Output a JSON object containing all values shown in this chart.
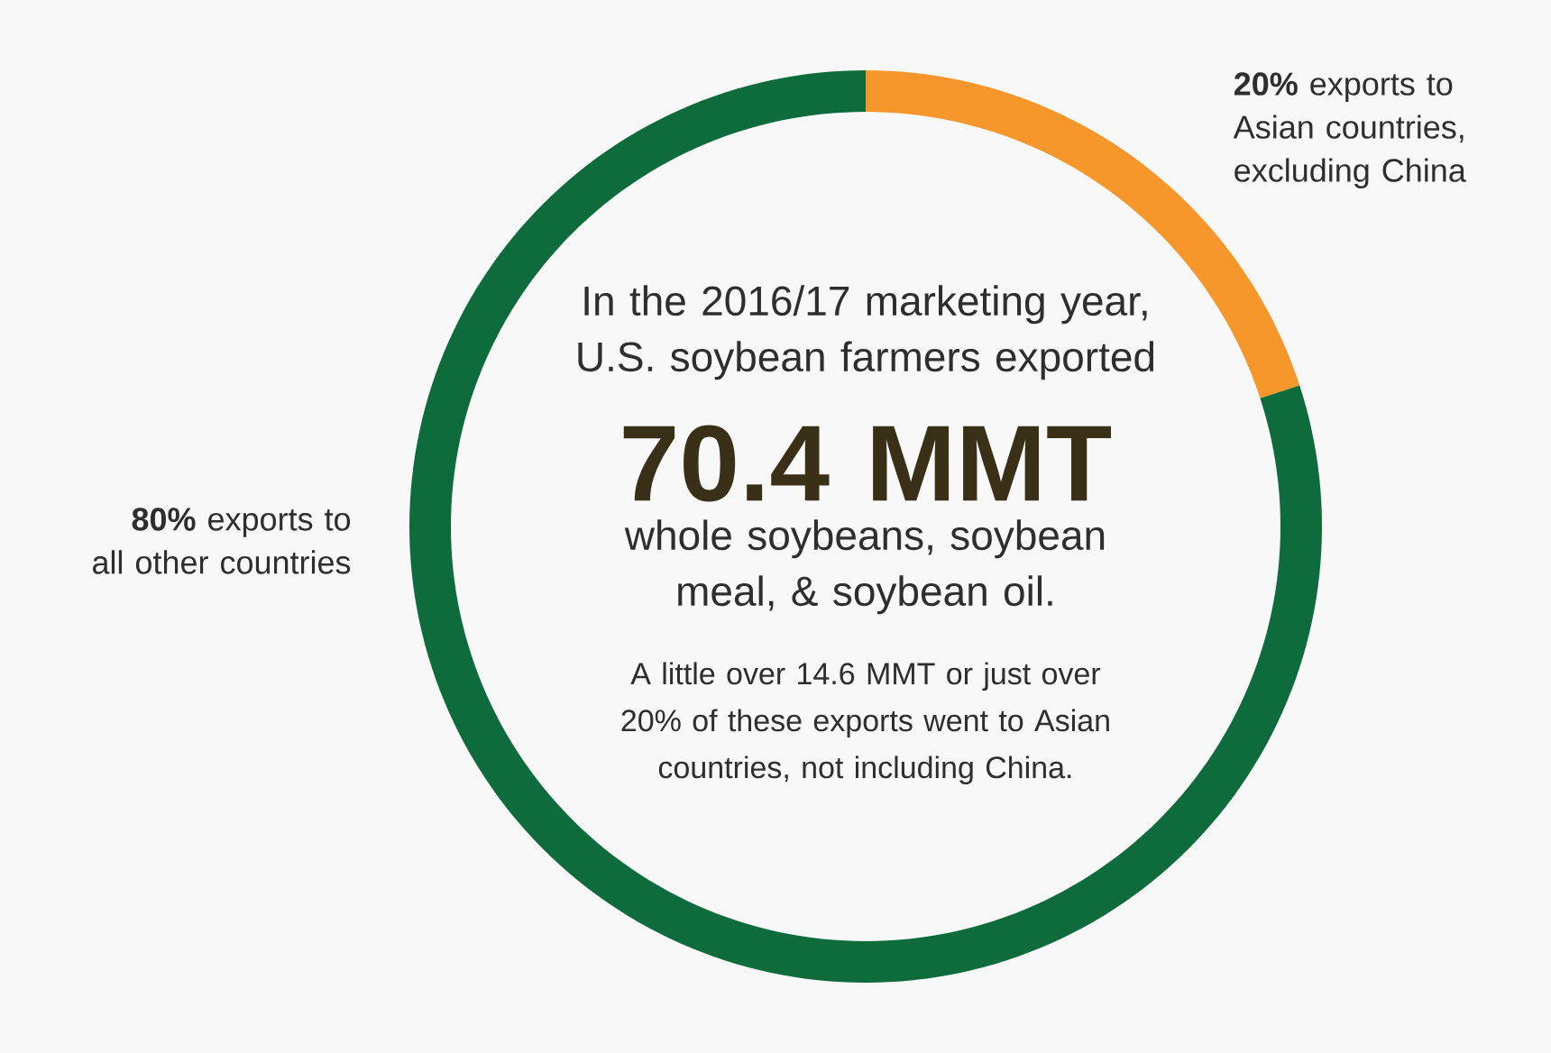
{
  "chart_data": {
    "type": "donut",
    "categories": [
      "**20%** exports to Asian countries, excluding China",
      "**80%** exports to all other countries"
    ],
    "values": [
      20,
      80
    ],
    "colors": [
      "#f7962b",
      "#0e6b3b"
    ],
    "annotations": [
      "In the 2016/17 marketing year, U.S. soybean farmers exported",
      "70.4 MMT",
      "whole soybeans, soybean meal, & soybean oil.",
      "A little over 14.6 MMT or just over 20% of these exports went to Asian countries, not including China."
    ]
  }
}
